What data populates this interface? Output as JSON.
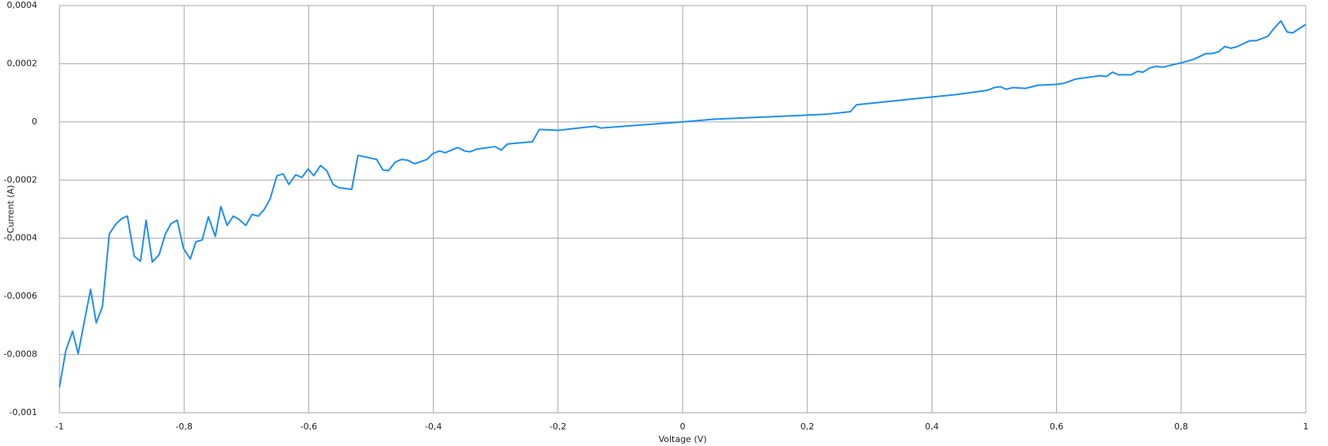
{
  "chart_data": {
    "type": "line",
    "x_label": "Voltage (V)",
    "y_label": "Current (A)",
    "xlim": [
      -1,
      1
    ],
    "ylim": [
      -0.001,
      0.0004
    ],
    "grid": true,
    "xticks": [
      {
        "value": -1,
        "label": "-1"
      },
      {
        "value": -0.8,
        "label": "-0,8"
      },
      {
        "value": -0.6,
        "label": "-0,6"
      },
      {
        "value": -0.4,
        "label": "-0,4"
      },
      {
        "value": -0.2,
        "label": "-0,2"
      },
      0,
      {
        "value": 0.2,
        "label": "0,2"
      },
      {
        "value": 0.4,
        "label": "0,4"
      },
      {
        "value": 0.6,
        "label": "0,6"
      },
      {
        "value": 0.8,
        "label": "0,8"
      },
      1
    ],
    "yticks": [
      {
        "value": -0.001,
        "label": "-0,001"
      },
      {
        "value": -0.0008,
        "label": "-0,0008"
      },
      {
        "value": -0.0006,
        "label": "-0,0006"
      },
      {
        "value": -0.0004,
        "label": "-0,0004"
      },
      {
        "value": -0.0002,
        "label": "-0,0002"
      },
      0,
      {
        "value": 0.0002,
        "label": "0,0002"
      },
      {
        "value": 0.0004,
        "label": "0,0004"
      }
    ],
    "series": [
      {
        "color": "#1f8ef1",
        "x": [
          -1,
          -0.99,
          -0.979,
          -0.97,
          -0.96,
          -0.95,
          -0.941,
          -0.931,
          -0.92,
          -0.91,
          -0.9,
          -0.891,
          -0.88,
          -0.87,
          -0.861,
          -0.851,
          -0.84,
          -0.83,
          -0.821,
          -0.811,
          -0.801,
          -0.79,
          -0.781,
          -0.771,
          -0.761,
          -0.75,
          -0.741,
          -0.731,
          -0.721,
          -0.712,
          -0.701,
          -0.691,
          -0.681,
          -0.672,
          -0.662,
          -0.651,
          -0.641,
          -0.632,
          -0.621,
          -0.611,
          -0.601,
          -0.592,
          -0.581,
          -0.571,
          -0.561,
          -0.552,
          -0.531,
          -0.521,
          -0.491,
          -0.481,
          -0.472,
          -0.461,
          -0.451,
          -0.441,
          -0.43,
          -0.41,
          -0.401,
          -0.39,
          -0.381,
          -0.361,
          -0.35,
          -0.341,
          -0.331,
          -0.301,
          -0.291,
          -0.281,
          -0.241,
          -0.23,
          -0.2,
          -0.141,
          -0.131,
          0,
          0.05,
          0.229,
          0.269,
          0.279,
          0.439,
          0.49,
          0.5,
          0.51,
          0.519,
          0.53,
          0.55,
          0.57,
          0.6,
          0.61,
          0.619,
          0.63,
          0.66,
          0.669,
          0.68,
          0.69,
          0.699,
          0.72,
          0.73,
          0.739,
          0.749,
          0.76,
          0.77,
          0.8,
          0.82,
          0.84,
          0.85,
          0.86,
          0.87,
          0.88,
          0.89,
          0.91,
          0.92,
          0.939,
          0.95,
          0.96,
          0.97,
          0.979,
          1
        ],
        "values": [
          -0.000912,
          -0.000788,
          -0.00072,
          -0.000797,
          -0.000685,
          -0.000576,
          -0.000691,
          -0.000635,
          -0.000385,
          -0.000353,
          -0.000332,
          -0.000324,
          -0.000462,
          -0.000479,
          -0.000338,
          -0.000482,
          -0.000456,
          -0.000385,
          -0.00035,
          -0.000338,
          -0.000435,
          -0.000471,
          -0.000412,
          -0.000406,
          -0.000326,
          -0.000394,
          -0.000291,
          -0.000356,
          -0.000324,
          -0.000335,
          -0.000356,
          -0.000318,
          -0.000324,
          -0.000303,
          -0.000265,
          -0.000185,
          -0.000179,
          -0.000215,
          -0.000182,
          -0.000191,
          -0.000162,
          -0.000185,
          -0.00015,
          -0.000168,
          -0.000215,
          -0.000226,
          -0.000232,
          -0.000115,
          -0.000129,
          -0.000165,
          -0.000168,
          -0.000138,
          -0.000129,
          -0.000132,
          -0.000144,
          -0.000129,
          -0.000109,
          -0.0001,
          -0.000106,
          -8.8e-05,
          -0.0001,
          -0.000103,
          -9.4e-05,
          -8.5e-05,
          -9.7e-05,
          -7.6e-05,
          -6.8e-05,
          -2.6e-05,
          -2.9e-05,
          -1.5e-05,
          -2.1e-05,
          0,
          9e-06,
          2.6e-05,
          3.5e-05,
          5.9e-05,
          9.4e-05,
          0.000109,
          0.000118,
          0.000121,
          0.000112,
          0.000118,
          0.000115,
          0.000126,
          0.000129,
          0.000132,
          0.000138,
          0.000147,
          0.000156,
          0.000159,
          0.000156,
          0.000171,
          0.000162,
          0.000162,
          0.000174,
          0.000171,
          0.000185,
          0.000191,
          0.000188,
          0.000203,
          0.000215,
          0.000235,
          0.000235,
          0.000241,
          0.000259,
          0.000253,
          0.000259,
          0.000279,
          0.000279,
          0.000294,
          0.000324,
          0.000347,
          0.000309,
          0.000306,
          0.000335
        ]
      }
    ]
  }
}
